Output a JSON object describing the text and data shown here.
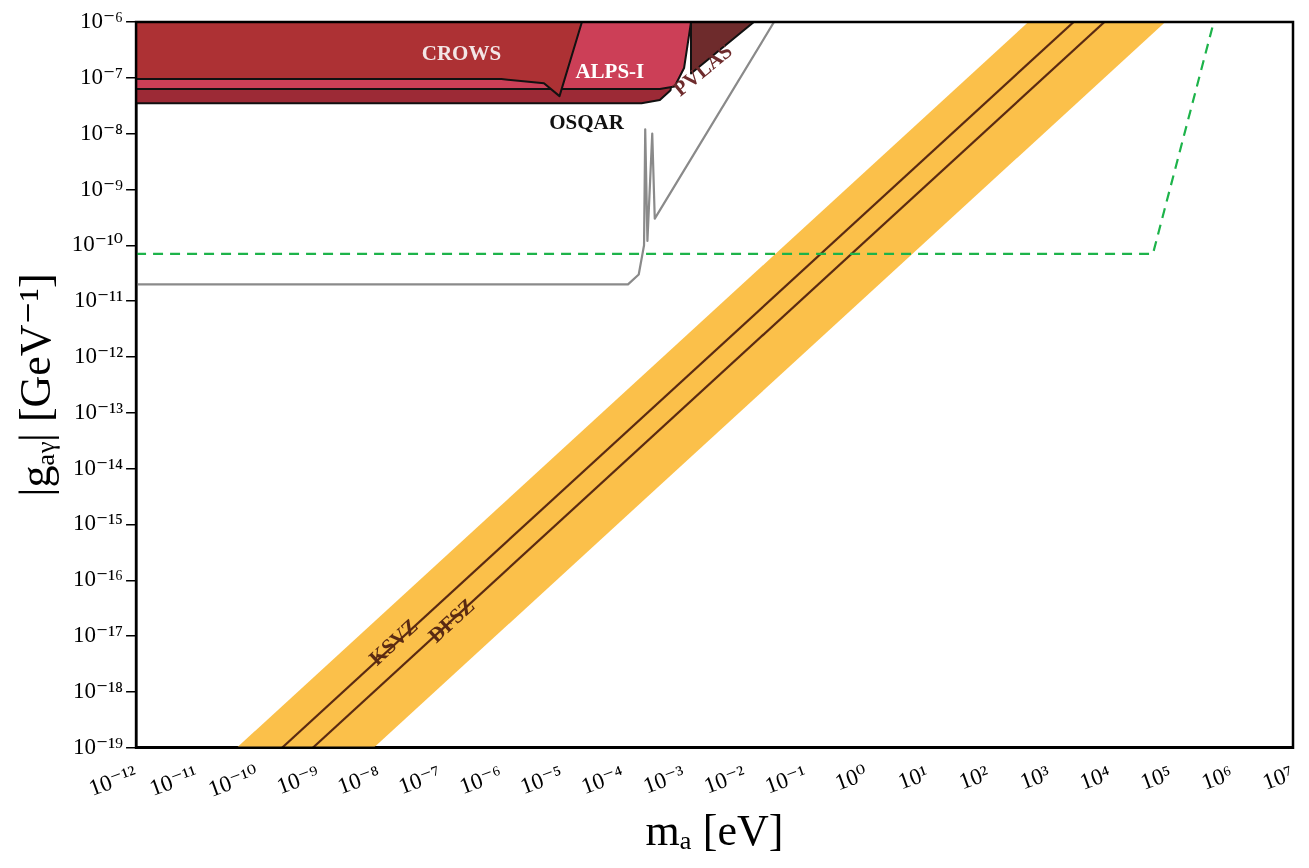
{
  "chart_data": {
    "type": "area",
    "xlabel": "mₐ [eV]",
    "ylabel": "|gₐᵧ| [GeV⁻¹]",
    "log": "xy",
    "grid": false,
    "legend": false,
    "marker": "none",
    "xlim": [
      1e-12,
      10000000.0
    ],
    "ylim": [
      1e-19,
      1e-06
    ],
    "xticks": [
      {
        "value": 1e-12,
        "label": "10⁻¹²"
      },
      {
        "value": 1e-11,
        "label": "10⁻¹¹"
      },
      {
        "value": 1e-10,
        "label": "10⁻¹⁰"
      },
      {
        "value": 1e-09,
        "label": "10⁻⁹"
      },
      {
        "value": 1e-08,
        "label": "10⁻⁸"
      },
      {
        "value": 1e-07,
        "label": "10⁻⁷"
      },
      {
        "value": 1e-06,
        "label": "10⁻⁶"
      },
      {
        "value": 1e-05,
        "label": "10⁻⁵"
      },
      {
        "value": 0.0001,
        "label": "10⁻⁴"
      },
      {
        "value": 0.001,
        "label": "10⁻³"
      },
      {
        "value": 0.01,
        "label": "10⁻²"
      },
      {
        "value": 0.1,
        "label": "10⁻¹"
      },
      {
        "value": 1,
        "label": "10⁰"
      },
      {
        "value": 10,
        "label": "10¹"
      },
      {
        "value": 100,
        "label": "10²"
      },
      {
        "value": 1000,
        "label": "10³"
      },
      {
        "value": 10000,
        "label": "10⁴"
      },
      {
        "value": 100000,
        "label": "10⁵"
      },
      {
        "value": 1000000,
        "label": "10⁶"
      },
      {
        "value": 10000000,
        "label": "10⁷"
      }
    ],
    "yticks": [
      {
        "value": 1e-19,
        "label": "10⁻¹⁹"
      },
      {
        "value": 1e-18,
        "label": "10⁻¹⁸"
      },
      {
        "value": 1e-17,
        "label": "10⁻¹⁷"
      },
      {
        "value": 1e-16,
        "label": "10⁻¹⁶"
      },
      {
        "value": 1e-15,
        "label": "10⁻¹⁵"
      },
      {
        "value": 1e-14,
        "label": "10⁻¹⁴"
      },
      {
        "value": 1e-13,
        "label": "10⁻¹³"
      },
      {
        "value": 1e-12,
        "label": "10⁻¹²"
      },
      {
        "value": 1e-11,
        "label": "10⁻¹¹"
      },
      {
        "value": 1e-10,
        "label": "10⁻¹⁰"
      },
      {
        "value": 1e-09,
        "label": "10⁻⁹"
      },
      {
        "value": 1e-08,
        "label": "10⁻⁸"
      },
      {
        "value": 1e-07,
        "label": "10⁻⁷"
      },
      {
        "value": 1e-06,
        "label": "10⁻⁶"
      }
    ],
    "series": [
      {
        "color": "#fbc04a",
        "x": [
          4.5e-11,
          450,
          80000,
          8e-09
        ],
        "values": [
          1e-19,
          1e-06,
          1e-06,
          1e-19
        ]
      },
      {
        "type": "line",
        "name": "KSVZ",
        "color": "#5a2a12",
        "x": [
          2.5e-10,
          2500
        ],
        "values": [
          1e-19,
          1e-06
        ]
      },
      {
        "type": "line",
        "name": "DFSZ",
        "color": "#5a2a12",
        "x": [
          8e-10,
          8000
        ],
        "values": [
          1e-19,
          1e-06
        ]
      },
      {
        "type": "line",
        "color": "#1db34a",
        "line_style": "dashed",
        "x": [
          1e-12,
          50000,
          500000
        ],
        "values": [
          7e-11,
          7e-11,
          1e-06
        ]
      },
      {
        "type": "line",
        "color": "#8a8a8a",
        "x": [
          1e-12,
          0.00012,
          0.00018,
          0.00022,
          0.00023,
          0.00025,
          0.0003,
          0.00033,
          0.03
        ],
        "values": [
          2e-11,
          2e-11,
          3e-11,
          1e-10,
          1.2e-08,
          1.2e-10,
          1e-08,
          3e-10,
          1e-06
        ]
      },
      {
        "name": "PVLAS",
        "color": "#6e2b2c",
        "x": [
          0.0013,
          0.0013,
          0.014
        ],
        "values": [
          1e-06,
          1.2e-07,
          1e-06
        ]
      },
      {
        "name": "OSQAR",
        "color": "#9c2a36",
        "x": [
          1e-12,
          1e-12,
          0.0002,
          0.0004,
          0.0006,
          0.0008
        ],
        "values": [
          1e-06,
          3.5e-08,
          3.5e-08,
          4e-08,
          6e-08,
          1e-06
        ]
      },
      {
        "name": "ALPS-I",
        "color": "#cc3f57",
        "x": [
          1e-12,
          1e-12,
          0.0004,
          0.0007,
          0.001,
          0.0013
        ],
        "values": [
          1e-06,
          6.3e-08,
          6.3e-08,
          7e-08,
          1.5e-07,
          1e-06
        ]
      },
      {
        "name": "CROWS",
        "color": "#ad3134",
        "x": [
          1e-12,
          1e-12,
          1e-06,
          5e-06,
          9e-06,
          2.1e-05
        ],
        "values": [
          1e-06,
          9.5e-08,
          9.5e-08,
          8e-08,
          4.7e-08,
          1e-06
        ]
      }
    ]
  }
}
